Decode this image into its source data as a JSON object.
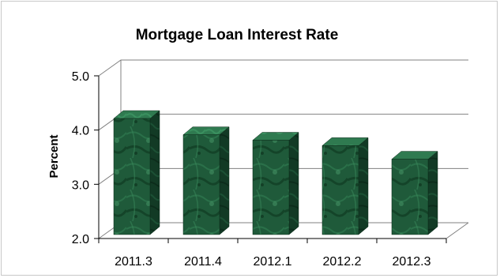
{
  "colors": {
    "bar_front": "#1f5a3a",
    "bar_side": "#123a25",
    "bar_top": "#2f7a50",
    "grid": "#808080",
    "axis": "#000000"
  },
  "chart_data": {
    "type": "bar",
    "title": "Mortgage Loan Interest Rate",
    "xlabel": "",
    "ylabel": "Percent",
    "categories": [
      "2011.3",
      "2011.4",
      "2012.1",
      "2012.2",
      "2012.3"
    ],
    "values": [
      4.3,
      4.0,
      3.9,
      3.8,
      3.55
    ],
    "ylim": [
      2.0,
      5.0
    ],
    "yticks": [
      "2.0",
      "3.0",
      "4.0",
      "5.0"
    ],
    "grid": true,
    "legend": "none",
    "style": "3d-column"
  }
}
